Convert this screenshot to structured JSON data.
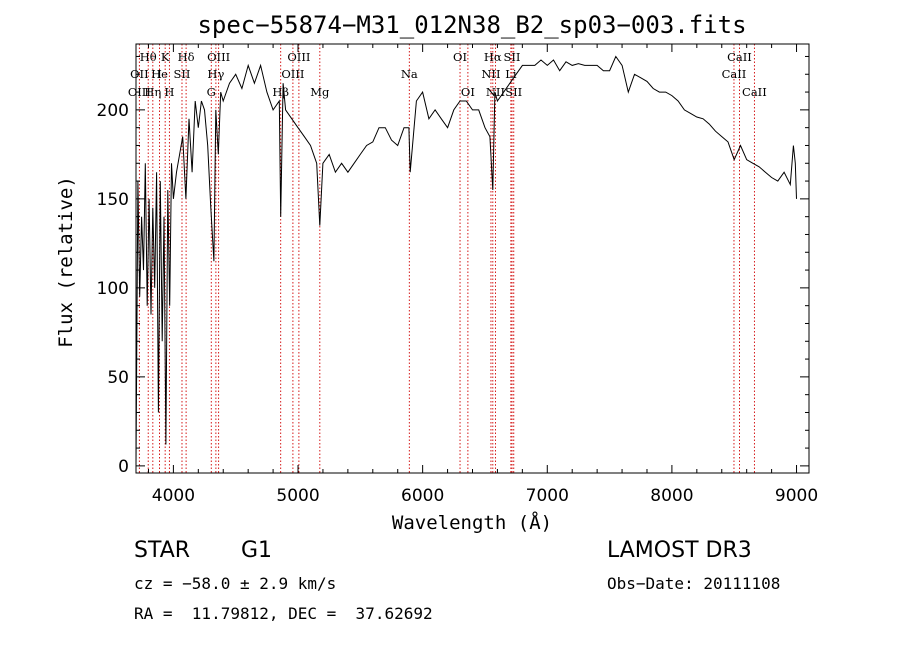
{
  "chart_data": {
    "type": "line",
    "title": "spec−55874−M31_012N38_B2_sp03−003.fits",
    "xlabel": "Wavelength (Å)",
    "ylabel": "Flux (relative)",
    "xlim": [
      3700,
      9100
    ],
    "ylim": [
      -4,
      237
    ],
    "xticks": [
      4000,
      5000,
      6000,
      7000,
      8000,
      9000
    ],
    "yticks": [
      0,
      50,
      100,
      150,
      200
    ],
    "grid": false,
    "legend": "none",
    "line_color": "#000000",
    "marker_color": "#d00000",
    "series": [
      {
        "x": [
          3700,
          3715,
          3730,
          3745,
          3760,
          3775,
          3790,
          3805,
          3820,
          3835,
          3850,
          3865,
          3880,
          3895,
          3910,
          3925,
          3940,
          3955,
          3970,
          3985,
          4000,
          4025,
          4050,
          4075,
          4100,
          4125,
          4150,
          4175,
          4200,
          4225,
          4250,
          4275,
          4300,
          4325,
          4340,
          4360,
          4380,
          4400,
          4450,
          4500,
          4550,
          4600,
          4650,
          4700,
          4750,
          4800,
          4850,
          4861,
          4880,
          4900,
          4950,
          5000,
          5050,
          5100,
          5150,
          5175,
          5200,
          5250,
          5300,
          5350,
          5400,
          5450,
          5500,
          5550,
          5600,
          5650,
          5700,
          5750,
          5800,
          5850,
          5890,
          5900,
          5950,
          6000,
          6050,
          6100,
          6150,
          6200,
          6250,
          6300,
          6350,
          6400,
          6450,
          6500,
          6540,
          6563,
          6580,
          6600,
          6650,
          6700,
          6750,
          6800,
          6850,
          6900,
          6950,
          7000,
          7050,
          7100,
          7150,
          7200,
          7250,
          7300,
          7350,
          7400,
          7450,
          7500,
          7550,
          7600,
          7650,
          7700,
          7750,
          7800,
          7850,
          7900,
          7950,
          8000,
          8050,
          8100,
          8150,
          8200,
          8250,
          8300,
          8350,
          8400,
          8450,
          8500,
          8550,
          8600,
          8650,
          8700,
          8750,
          8800,
          8850,
          8900,
          8950,
          8975,
          8990,
          9000
        ],
        "y": [
          0,
          160,
          95,
          140,
          110,
          170,
          90,
          150,
          85,
          145,
          100,
          165,
          30,
          160,
          70,
          140,
          12,
          155,
          90,
          170,
          150,
          165,
          175,
          185,
          150,
          195,
          165,
          205,
          190,
          205,
          200,
          180,
          145,
          115,
          200,
          175,
          210,
          205,
          215,
          220,
          212,
          225,
          215,
          225,
          210,
          200,
          205,
          140,
          215,
          200,
          195,
          190,
          185,
          180,
          170,
          135,
          170,
          175,
          165,
          170,
          165,
          170,
          175,
          180,
          182,
          190,
          190,
          183,
          180,
          190,
          190,
          165,
          205,
          210,
          195,
          200,
          195,
          190,
          200,
          205,
          205,
          200,
          200,
          190,
          185,
          155,
          210,
          205,
          210,
          215,
          220,
          225,
          225,
          225,
          228,
          225,
          228,
          222,
          227,
          225,
          226,
          225,
          225,
          225,
          222,
          222,
          230,
          225,
          210,
          220,
          218,
          216,
          212,
          210,
          210,
          208,
          205,
          200,
          198,
          196,
          195,
          192,
          188,
          185,
          182,
          172,
          180,
          172,
          170,
          168,
          165,
          162,
          160,
          165,
          158,
          180,
          170,
          150
        ]
      }
    ],
    "spectral_lines": [
      {
        "label": "Hθ",
        "wavelength": 3798,
        "row": 0
      },
      {
        "label": "K",
        "wavelength": 3934,
        "row": 0
      },
      {
        "label": "Hδ",
        "wavelength": 4102,
        "row": 0
      },
      {
        "label": "OIII",
        "wavelength": 4363,
        "row": 0
      },
      {
        "label": "OIII",
        "wavelength": 5007,
        "row": 0
      },
      {
        "label": "OI",
        "wavelength": 6300,
        "row": 0
      },
      {
        "label": "Hα",
        "wavelength": 6563,
        "row": 0
      },
      {
        "label": "SII",
        "wavelength": 6717,
        "row": 0
      },
      {
        "label": "CaII",
        "wavelength": 8542,
        "row": 0
      },
      {
        "label": "OII",
        "wavelength": 3727,
        "row": 1
      },
      {
        "label": "He",
        "wavelength": 3889,
        "row": 1
      },
      {
        "label": "I",
        "wavelength": 3889,
        "row": 1
      },
      {
        "label": "SII",
        "wavelength": 4069,
        "row": 1
      },
      {
        "label": "Hγ",
        "wavelength": 4341,
        "row": 1
      },
      {
        "label": "OIII",
        "wavelength": 4959,
        "row": 1
      },
      {
        "label": "Na",
        "wavelength": 5893,
        "row": 1
      },
      {
        "label": "NII",
        "wavelength": 6548,
        "row": 1
      },
      {
        "label": "Li",
        "wavelength": 6708,
        "row": 1
      },
      {
        "label": "CaII",
        "wavelength": 8498,
        "row": 1
      },
      {
        "label": "OIII",
        "wavelength": 3727,
        "row": 2
      },
      {
        "label": "Hη",
        "wavelength": 3835,
        "row": 2
      },
      {
        "label": "H",
        "wavelength": 3968,
        "row": 2
      },
      {
        "label": "G",
        "wavelength": 4304,
        "row": 2
      },
      {
        "label": "Hβ",
        "wavelength": 4861,
        "row": 2
      },
      {
        "label": "Mg",
        "wavelength": 5175,
        "row": 2
      },
      {
        "label": "OI",
        "wavelength": 6363,
        "row": 2
      },
      {
        "label": "NII",
        "wavelength": 6584,
        "row": 2
      },
      {
        "label": "SII",
        "wavelength": 6731,
        "row": 2
      },
      {
        "label": "CaII",
        "wavelength": 8662,
        "row": 2
      }
    ]
  },
  "info": {
    "object_class": "STAR",
    "subclass": "G1",
    "survey": "LAMOST DR3",
    "redshift_line": "cz = −58.0 ± 2.9 km/s",
    "obs_date": "Obs−Date: 20111108",
    "coords": "RA =  11.79812, DEC =  37.62692"
  }
}
